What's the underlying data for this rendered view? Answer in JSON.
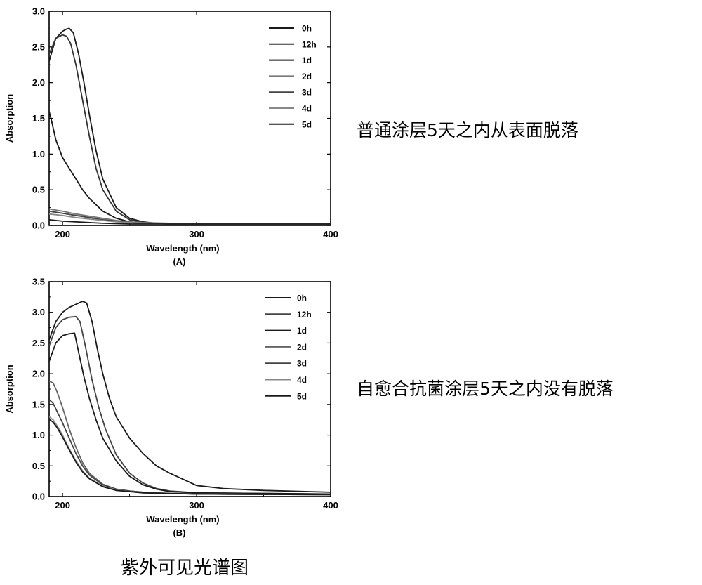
{
  "figure_caption": "紫外可见光谱图",
  "colors": {
    "axis": "#000000",
    "curve": "#1a1a1a",
    "curve_light": "#555555"
  },
  "legend_labels": [
    "0h",
    "12h",
    "1d",
    "2d",
    "3d",
    "4d",
    "5d"
  ],
  "chart_data": [
    {
      "type": "line",
      "panel_label": "(A)",
      "side_note": "普通涂层5天之内从表面脱落",
      "xlabel": "Wavelength (nm)",
      "ylabel": "Absorption",
      "xlim": [
        190,
        400
      ],
      "ylim": [
        0,
        3.0
      ],
      "xticks": [
        "200",
        "300",
        "400"
      ],
      "yticks": [
        "0.0",
        "0.5",
        "1.0",
        "1.5",
        "2.0",
        "2.5",
        "3.0"
      ],
      "legend_position": "top-right",
      "grid": false,
      "series": [
        {
          "name": "0h",
          "color": "#1a1a1a",
          "x": [
            190,
            195,
            200,
            203,
            205,
            208,
            212,
            216,
            220,
            225,
            230,
            240,
            250,
            260,
            270,
            300,
            350,
            400
          ],
          "y": [
            2.3,
            2.62,
            2.72,
            2.75,
            2.76,
            2.7,
            2.4,
            2.0,
            1.55,
            1.05,
            0.65,
            0.25,
            0.1,
            0.05,
            0.03,
            0.02,
            0.02,
            0.02
          ]
        },
        {
          "name": "12h",
          "color": "#333333",
          "x": [
            190,
            195,
            200,
            203,
            206,
            210,
            215,
            220,
            225,
            230,
            240,
            250,
            260,
            280,
            300,
            400
          ],
          "y": [
            2.4,
            2.62,
            2.67,
            2.65,
            2.55,
            2.25,
            1.75,
            1.25,
            0.8,
            0.5,
            0.2,
            0.08,
            0.04,
            0.02,
            0.02,
            0.02
          ]
        },
        {
          "name": "1d",
          "color": "#1a1a1a",
          "x": [
            190,
            192,
            195,
            200,
            205,
            210,
            215,
            220,
            230,
            240,
            250,
            260,
            280,
            300,
            400
          ],
          "y": [
            1.6,
            1.45,
            1.2,
            0.95,
            0.8,
            0.65,
            0.5,
            0.38,
            0.2,
            0.1,
            0.05,
            0.03,
            0.02,
            0.02,
            0.02
          ]
        },
        {
          "name": "2d",
          "color": "#777777",
          "x": [
            190,
            200,
            210,
            220,
            230,
            240,
            250,
            260,
            280,
            300,
            400
          ],
          "y": [
            0.23,
            0.2,
            0.16,
            0.13,
            0.1,
            0.07,
            0.05,
            0.04,
            0.03,
            0.02,
            0.02
          ]
        },
        {
          "name": "3d",
          "color": "#444444",
          "x": [
            190,
            200,
            210,
            220,
            230,
            240,
            250,
            260,
            280,
            300,
            400
          ],
          "y": [
            0.2,
            0.17,
            0.14,
            0.11,
            0.08,
            0.06,
            0.04,
            0.03,
            0.02,
            0.02,
            0.02
          ]
        },
        {
          "name": "4d",
          "color": "#888888",
          "x": [
            190,
            200,
            210,
            220,
            230,
            240,
            250,
            260,
            280,
            300,
            400
          ],
          "y": [
            0.16,
            0.14,
            0.11,
            0.09,
            0.07,
            0.05,
            0.04,
            0.03,
            0.02,
            0.02,
            0.02
          ]
        },
        {
          "name": "5d",
          "color": "#1a1a1a",
          "x": [
            190,
            200,
            210,
            220,
            230,
            250,
            270,
            300,
            400
          ],
          "y": [
            0.08,
            0.06,
            0.05,
            0.04,
            0.03,
            0.02,
            0.02,
            0.02,
            0.02
          ]
        }
      ]
    },
    {
      "type": "line",
      "panel_label": "(B)",
      "side_note": "自愈合抗菌涂层5天之内没有脱落",
      "xlabel": "Wavelength (nm)",
      "ylabel": "Absorption",
      "xlim": [
        190,
        400
      ],
      "ylim": [
        0,
        3.5
      ],
      "xticks": [
        "200",
        "300",
        "400"
      ],
      "yticks": [
        "0.0",
        "0.5",
        "1.0",
        "1.5",
        "2.0",
        "2.5",
        "3.0",
        "3.5"
      ],
      "legend_position": "top-right",
      "grid": false,
      "series": [
        {
          "name": "0h",
          "color": "#1a1a1a",
          "x": [
            190,
            195,
            200,
            205,
            210,
            215,
            218,
            222,
            226,
            230,
            235,
            240,
            250,
            260,
            270,
            280,
            290,
            300,
            320,
            350,
            400
          ],
          "y": [
            2.55,
            2.85,
            3.0,
            3.08,
            3.13,
            3.18,
            3.15,
            2.85,
            2.4,
            2.0,
            1.6,
            1.3,
            0.95,
            0.7,
            0.5,
            0.38,
            0.28,
            0.18,
            0.13,
            0.1,
            0.07
          ]
        },
        {
          "name": "12h",
          "color": "#444444",
          "x": [
            190,
            195,
            200,
            205,
            210,
            213,
            217,
            222,
            227,
            232,
            240,
            250,
            260,
            270,
            280,
            300,
            350,
            400
          ],
          "y": [
            2.45,
            2.75,
            2.88,
            2.92,
            2.93,
            2.85,
            2.45,
            1.9,
            1.45,
            1.1,
            0.68,
            0.38,
            0.22,
            0.13,
            0.09,
            0.06,
            0.05,
            0.04
          ]
        },
        {
          "name": "1d",
          "color": "#1a1a1a",
          "x": [
            190,
            195,
            200,
            205,
            209,
            212,
            216,
            220,
            225,
            230,
            240,
            250,
            260,
            270,
            280,
            300,
            350,
            400
          ],
          "y": [
            2.2,
            2.5,
            2.62,
            2.65,
            2.66,
            2.35,
            1.95,
            1.6,
            1.25,
            0.95,
            0.58,
            0.33,
            0.19,
            0.12,
            0.08,
            0.06,
            0.05,
            0.04
          ]
        },
        {
          "name": "2d",
          "color": "#666666",
          "x": [
            190,
            193,
            196,
            200,
            205,
            210,
            215,
            220,
            230,
            240,
            250,
            260,
            280,
            300,
            400
          ],
          "y": [
            1.88,
            1.85,
            1.7,
            1.45,
            1.1,
            0.8,
            0.55,
            0.38,
            0.2,
            0.12,
            0.09,
            0.07,
            0.05,
            0.04,
            0.03
          ]
        },
        {
          "name": "3d",
          "color": "#444444",
          "x": [
            190,
            193,
            196,
            200,
            205,
            210,
            215,
            220,
            230,
            240,
            250,
            260,
            280,
            300,
            400
          ],
          "y": [
            1.58,
            1.52,
            1.38,
            1.2,
            0.95,
            0.7,
            0.5,
            0.35,
            0.19,
            0.12,
            0.09,
            0.07,
            0.05,
            0.04,
            0.03
          ]
        },
        {
          "name": "4d",
          "color": "#888888",
          "x": [
            190,
            193,
            196,
            200,
            205,
            210,
            215,
            220,
            230,
            240,
            250,
            260,
            280,
            300,
            400
          ],
          "y": [
            1.3,
            1.25,
            1.15,
            1.0,
            0.78,
            0.58,
            0.42,
            0.3,
            0.17,
            0.11,
            0.08,
            0.06,
            0.05,
            0.04,
            0.03
          ]
        },
        {
          "name": "5d",
          "color": "#1a1a1a",
          "x": [
            190,
            193,
            196,
            200,
            205,
            210,
            215,
            220,
            230,
            240,
            250,
            260,
            280,
            300,
            400
          ],
          "y": [
            1.26,
            1.21,
            1.12,
            0.97,
            0.76,
            0.56,
            0.4,
            0.29,
            0.16,
            0.1,
            0.08,
            0.06,
            0.05,
            0.04,
            0.03
          ]
        }
      ]
    }
  ]
}
